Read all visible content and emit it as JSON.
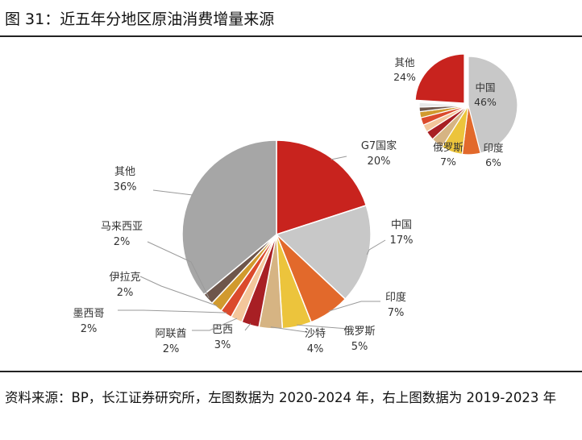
{
  "figure": {
    "title": "图 31：近五年分地区原油消费增量来源",
    "source": "资料来源：BP，长江证券研究所，左图数据为 2020-2024 年，右上图数据为 2019-2023 年"
  },
  "chart_data": [
    {
      "type": "pie",
      "title": "2020-2024",
      "slices": [
        {
          "label": "G7国家",
          "pct": "20%",
          "value": 20,
          "color": "#C8231E"
        },
        {
          "label": "中国",
          "pct": "17%",
          "value": 17,
          "color": "#C8C8C8"
        },
        {
          "label": "印度",
          "pct": "7%",
          "value": 7,
          "color": "#E2692B"
        },
        {
          "label": "俄罗斯",
          "pct": "5%",
          "value": 5,
          "color": "#ECC43C"
        },
        {
          "label": "沙特",
          "pct": "4%",
          "value": 4,
          "color": "#D6B483"
        },
        {
          "label": "巴西",
          "pct": "3%",
          "value": 3,
          "color": "#A81F24"
        },
        {
          "label": "阿联酋",
          "pct": "2%",
          "value": 2,
          "color": "#F3C69B"
        },
        {
          "label": "墨西哥",
          "pct": "2%",
          "value": 2,
          "color": "#DB4A2C"
        },
        {
          "label": "伊拉克",
          "pct": "2%",
          "value": 2,
          "color": "#D19A2E"
        },
        {
          "label": "马来西亚",
          "pct": "2%",
          "value": 2,
          "color": "#6E564B"
        },
        {
          "label": "其他",
          "pct": "36%",
          "value": 36,
          "color": "#A6A6A6"
        }
      ]
    },
    {
      "type": "pie",
      "title": "2019-2023",
      "slices": [
        {
          "label": "中国",
          "pct": "46%",
          "value": 46,
          "color": "#C8C8C8"
        },
        {
          "label": "印度",
          "pct": "6%",
          "value": 6,
          "color": "#E2692B"
        },
        {
          "label": "俄罗斯",
          "pct": "7%",
          "value": 7,
          "color": "#ECC43C"
        },
        {
          "label": "",
          "pct": "",
          "value": 4,
          "color": "#D6B483"
        },
        {
          "label": "",
          "pct": "",
          "value": 3,
          "color": "#A81F24"
        },
        {
          "label": "",
          "pct": "",
          "value": 2.5,
          "color": "#F3C69B"
        },
        {
          "label": "",
          "pct": "",
          "value": 2.5,
          "color": "#DB4A2C"
        },
        {
          "label": "",
          "pct": "",
          "value": 2,
          "color": "#D19A2E"
        },
        {
          "label": "",
          "pct": "",
          "value": 1.5,
          "color": "#6E564B"
        },
        {
          "label": "",
          "pct": "",
          "value": 1.5,
          "color": "#E8E8E8"
        },
        {
          "label": "其他",
          "pct": "24%",
          "value": 24,
          "color": "#C8231E"
        }
      ]
    }
  ]
}
